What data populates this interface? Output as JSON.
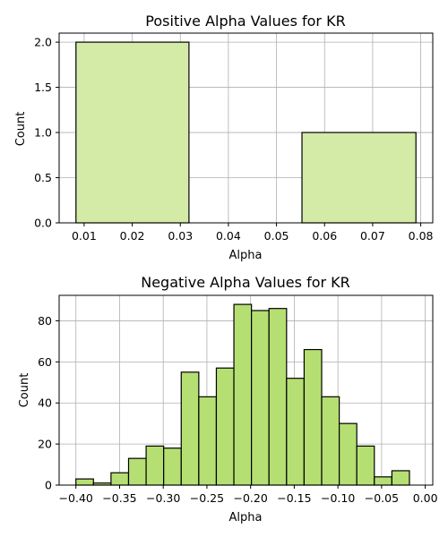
{
  "chart_data": [
    {
      "type": "histogram",
      "title": "Positive Alpha Values for KR",
      "xlabel": "Alpha",
      "ylabel": "Count",
      "xlim": [
        0.0048,
        0.0825
      ],
      "ylim": [
        0,
        2.1
      ],
      "xticks": [
        0.01,
        0.02,
        0.03,
        0.04,
        0.05,
        0.06,
        0.07,
        0.08
      ],
      "xtick_labels": [
        "0.01",
        "0.02",
        "0.03",
        "0.04",
        "0.05",
        "0.06",
        "0.07",
        "0.08"
      ],
      "yticks": [
        0,
        0.5,
        1,
        1.5,
        2
      ],
      "ytick_labels": [
        "0.0",
        "0.5",
        "1.0",
        "1.5",
        "2.0"
      ],
      "bins": [
        {
          "x0": 0.0083,
          "x1": 0.0318,
          "count": 2
        },
        {
          "x0": 0.0318,
          "x1": 0.0553,
          "count": 0
        },
        {
          "x0": 0.0553,
          "x1": 0.079,
          "count": 1
        }
      ],
      "bar_color": "#d4eba8",
      "edge_color": "#000000",
      "grid": true
    },
    {
      "type": "histogram",
      "title": "Negative Alpha Values for KR",
      "xlabel": "Alpha",
      "ylabel": "Count",
      "xlim": [
        -0.4192,
        0.0086
      ],
      "ylim": [
        0,
        92.4
      ],
      "xticks": [
        -0.4,
        -0.35,
        -0.3,
        -0.25,
        -0.2,
        -0.15,
        -0.1,
        -0.05,
        0.0
      ],
      "xtick_labels": [
        "−0.40",
        "−0.35",
        "−0.30",
        "−0.25",
        "−0.20",
        "−0.15",
        "−0.10",
        "−0.05",
        "0.00"
      ],
      "yticks": [
        0,
        20,
        40,
        60,
        80
      ],
      "ytick_labels": [
        "0",
        "20",
        "40",
        "60",
        "80"
      ],
      "bin_start": -0.4,
      "bin_width": 0.0201,
      "counts": [
        3,
        1,
        6,
        13,
        19,
        18,
        55,
        43,
        57,
        88,
        85,
        86,
        52,
        66,
        43,
        30,
        19,
        4,
        7
      ],
      "bar_color": "#b5df72",
      "edge_color": "#000000",
      "grid": true
    }
  ]
}
